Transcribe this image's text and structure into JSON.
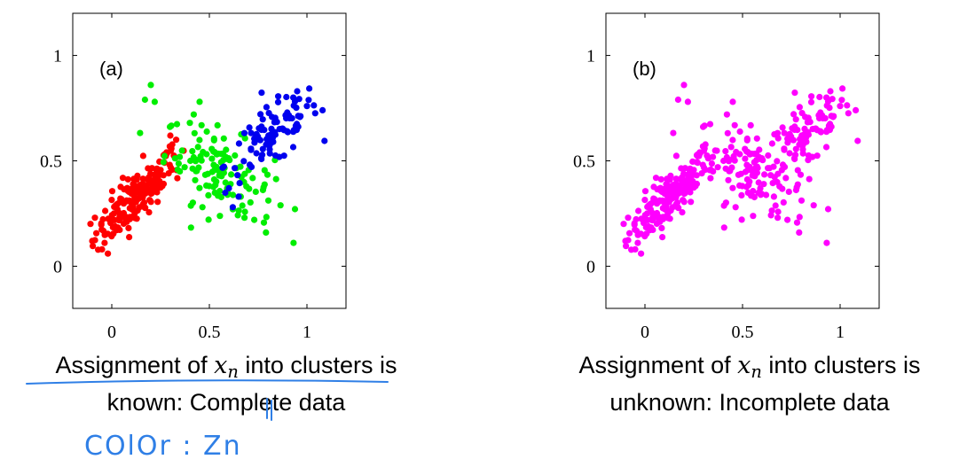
{
  "chart_data": [
    {
      "type": "scatter",
      "panel_label": "(a)",
      "xlim": [
        -0.2,
        1.2
      ],
      "ylim": [
        -0.2,
        1.2
      ],
      "xticks": [
        "0",
        "0.5",
        "1"
      ],
      "yticks": [
        "0",
        "0.5",
        "1"
      ],
      "grid": false,
      "series": [
        {
          "color": "#ff0000",
          "clusters": [
            {
              "cx": 0.12,
              "cy": 0.32,
              "sx": 0.1,
              "sy": 0.1,
              "rho": 0.8,
              "n": 170
            },
            {
              "cx": 0.3,
              "cy": 0.52,
              "sx": 0.04,
              "sy": 0.06,
              "rho": 0.3,
              "n": 15
            }
          ],
          "extra_points": [
            [
              -0.1,
              0.12
            ],
            [
              -0.05,
              0.08
            ],
            [
              -0.02,
              0.06
            ],
            [
              0.3,
              0.62
            ],
            [
              0.33,
              0.6
            ]
          ]
        },
        {
          "color": "#00ee00",
          "clusters": [
            {
              "cx": 0.55,
              "cy": 0.45,
              "sx": 0.14,
              "sy": 0.11,
              "rho": -0.5,
              "n": 120
            }
          ],
          "extra_points": [
            [
              0.2,
              0.86
            ],
            [
              0.17,
              0.79
            ],
            [
              0.22,
              0.78
            ],
            [
              0.45,
              0.78
            ],
            [
              0.42,
              0.72
            ],
            [
              0.4,
              0.68
            ],
            [
              0.79,
              0.16
            ],
            [
              0.73,
              0.22
            ],
            [
              0.68,
              0.23
            ],
            [
              0.62,
              0.27
            ]
          ]
        },
        {
          "color": "#0000ee",
          "clusters": [
            {
              "cx": 0.82,
              "cy": 0.62,
              "sx": 0.12,
              "sy": 0.1,
              "rho": 0.7,
              "n": 95
            }
          ],
          "extra_points": [
            [
              1.08,
              0.74
            ],
            [
              1.0,
              0.76
            ],
            [
              0.95,
              0.83
            ],
            [
              0.93,
              0.8
            ],
            [
              0.62,
              0.28
            ],
            [
              0.65,
              0.33
            ],
            [
              0.6,
              0.37
            ]
          ]
        }
      ]
    },
    {
      "type": "scatter",
      "panel_label": "(b)",
      "xlim": [
        -0.2,
        1.2
      ],
      "ylim": [
        -0.2,
        1.2
      ],
      "xticks": [
        "0",
        "0.5",
        "1"
      ],
      "yticks": [
        "0",
        "0.5",
        "1"
      ],
      "grid": false,
      "series": [
        {
          "color": "#ff00ff",
          "clusters": [
            {
              "cx": 0.12,
              "cy": 0.32,
              "sx": 0.1,
              "sy": 0.1,
              "rho": 0.8,
              "n": 170
            },
            {
              "cx": 0.3,
              "cy": 0.52,
              "sx": 0.04,
              "sy": 0.06,
              "rho": 0.3,
              "n": 15
            },
            {
              "cx": 0.55,
              "cy": 0.45,
              "sx": 0.14,
              "sy": 0.11,
              "rho": -0.5,
              "n": 120
            },
            {
              "cx": 0.82,
              "cy": 0.62,
              "sx": 0.12,
              "sy": 0.1,
              "rho": 0.7,
              "n": 95
            }
          ],
          "extra_points": [
            [
              -0.1,
              0.12
            ],
            [
              -0.05,
              0.08
            ],
            [
              -0.02,
              0.06
            ],
            [
              0.2,
              0.86
            ],
            [
              0.17,
              0.79
            ],
            [
              0.22,
              0.78
            ],
            [
              0.45,
              0.78
            ],
            [
              0.42,
              0.72
            ],
            [
              0.79,
              0.16
            ],
            [
              0.73,
              0.22
            ],
            [
              0.68,
              0.23
            ],
            [
              1.08,
              0.74
            ],
            [
              1.0,
              0.76
            ],
            [
              0.95,
              0.83
            ],
            [
              0.93,
              0.8
            ]
          ]
        }
      ]
    }
  ],
  "captions": {
    "a": {
      "prefix": "Assignment of ",
      "var": "x",
      "sub": "n",
      "rest": " into clusters is",
      "line2": "known: Complete data"
    },
    "b": {
      "prefix": "Assignment of ",
      "var": "x",
      "sub": "n",
      "rest": " into clusters is",
      "line2": "unknown: Incomplete data"
    }
  },
  "annotation": {
    "text": "COlOr : Zn",
    "ink_color": "#2f7fe6"
  }
}
